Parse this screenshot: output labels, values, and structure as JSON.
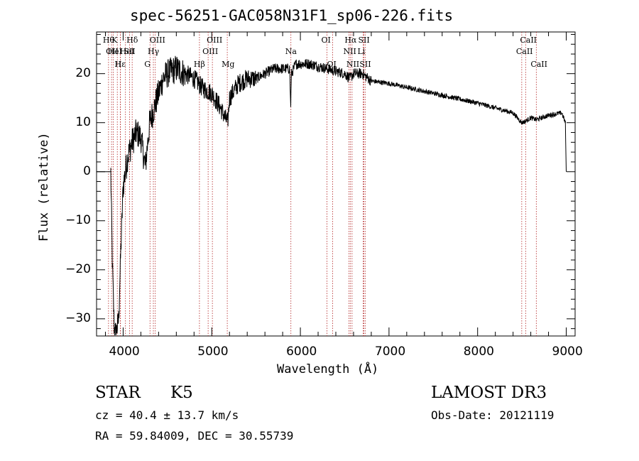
{
  "chart_data": {
    "type": "line",
    "title": "spec-56251-GAC058N31F1_sp06-226.fits",
    "xlabel": "Wavelength (Å)",
    "ylabel": "Flux (relative)",
    "xlim": [
      3700,
      9100
    ],
    "ylim": [
      -33.5,
      28.5
    ],
    "xticks": [
      4000,
      5000,
      6000,
      7000,
      8000,
      9000
    ],
    "yticks": [
      -30,
      -20,
      -10,
      0,
      10,
      20
    ],
    "spectrum_knots": {
      "x": [
        3700,
        3860,
        3880,
        3900,
        3920,
        3950,
        3970,
        4000,
        4050,
        4100,
        4150,
        4200,
        4250,
        4300,
        4350,
        4400,
        4450,
        4500,
        4600,
        4700,
        4800,
        4900,
        5000,
        5100,
        5150,
        5180,
        5200,
        5300,
        5400,
        5500,
        5700,
        5880,
        5890,
        5900,
        5950,
        6100,
        6300,
        6500,
        6560,
        6600,
        6700,
        6800,
        7000,
        7500,
        8000,
        8400,
        8498,
        8542,
        8600,
        8662,
        8800,
        8950,
        8990,
        9000
      ],
      "y": [
        0,
        0,
        -20,
        -32,
        -33,
        -30,
        -18,
        -3,
        3,
        6,
        8,
        7,
        1,
        10,
        13,
        16,
        19,
        20,
        21,
        20,
        19,
        17,
        16,
        13,
        11,
        10,
        15,
        18,
        19,
        19,
        21,
        21,
        13,
        20,
        22,
        22,
        21,
        20,
        19,
        20,
        20,
        18.5,
        18,
        16,
        14,
        12,
        10,
        10.3,
        11,
        10.6,
        11.5,
        12,
        10,
        0
      ]
    },
    "lines": [
      {
        "wavelength": 3835,
        "label": "Hθ",
        "row": 1
      },
      {
        "wavelength": 3869,
        "label": "OII",
        "row": 2
      },
      {
        "wavelength": 3889,
        "label": "HeI",
        "row": 2
      },
      {
        "wavelength": 3934,
        "label": "K",
        "row": 1
      },
      {
        "wavelength": 3970,
        "label": "Hε",
        "row": 3
      },
      {
        "wavelength": 3968,
        "label": "H",
        "row": 3
      },
      {
        "wavelength": 4026,
        "label": "HeI",
        "row": 2
      },
      {
        "wavelength": 4072,
        "label": "SII",
        "row": 2
      },
      {
        "wavelength": 4102,
        "label": "Hδ",
        "row": 1
      },
      {
        "wavelength": 4303,
        "label": "G",
        "row": 3
      },
      {
        "wavelength": 4341,
        "label": "Hγ",
        "row": 2
      },
      {
        "wavelength": 4363,
        "label": "OIII",
        "row": 1
      },
      {
        "wavelength": 4861,
        "label": "Hβ",
        "row": 3
      },
      {
        "wavelength": 4959,
        "label": "OIII",
        "row": 2
      },
      {
        "wavelength": 5007,
        "label": "OIII",
        "row": 1
      },
      {
        "wavelength": 5175,
        "label": "Mg",
        "row": 3
      },
      {
        "wavelength": 5893,
        "label": "Na",
        "row": 2
      },
      {
        "wavelength": 6300,
        "label": "OI",
        "row": 1
      },
      {
        "wavelength": 6364,
        "label": "OI",
        "row": 3
      },
      {
        "wavelength": 6548,
        "label": "NII",
        "row": 2
      },
      {
        "wavelength": 6563,
        "label": "Hα",
        "row": 1
      },
      {
        "wavelength": 6583,
        "label": "NII",
        "row": 3
      },
      {
        "wavelength": 6708,
        "label": "Li",
        "row": 2
      },
      {
        "wavelength": 6716,
        "label": "SII",
        "row": 1
      },
      {
        "wavelength": 6731,
        "label": "SII",
        "row": 3
      },
      {
        "wavelength": 8498,
        "label": "CaII",
        "row": 2
      },
      {
        "wavelength": 8542,
        "label": "CaII",
        "row": 1
      },
      {
        "wavelength": 8662,
        "label": "CaII",
        "row": 3
      }
    ]
  },
  "info": {
    "object_class": "STAR",
    "subclass": "K5",
    "survey": "LAMOST DR3",
    "cz": "cz = 40.4 ± 13.7 km/s",
    "obs_date": "Obs-Date: 20121119",
    "coords": "RA =  59.84009, DEC =  30.55739"
  },
  "colors": {
    "line_marker": "#b22222",
    "spectrum": "#000000"
  }
}
